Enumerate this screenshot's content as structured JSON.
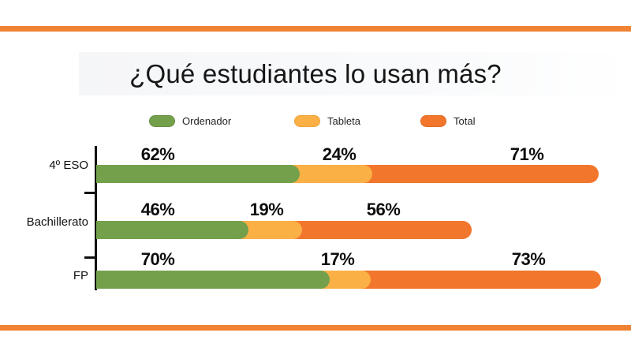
{
  "title": "¿Qué estudiantes lo usan más?",
  "colors": {
    "rule_orange": "#EF8233",
    "bar_green": "#74A04C",
    "bar_amber": "#FBB045",
    "bar_orange": "#F2762B",
    "text": "#161616",
    "title_band": "#F5F6F8"
  },
  "legend": {
    "items": [
      {
        "label": "Ordenador",
        "color": "#74A04C"
      },
      {
        "label": "Tableta",
        "color": "#FBB045"
      },
      {
        "label": "Total",
        "color": "#F2762B"
      }
    ]
  },
  "chart_data": {
    "type": "bar",
    "orientation": "horizontal",
    "title": "¿Qué estudiantes lo usan más?",
    "categories": [
      "4º ESO",
      "Bachillerato",
      "FP"
    ],
    "series": [
      {
        "name": "Ordenador",
        "color": "#74A04C",
        "values": [
          62,
          46,
          70
        ]
      },
      {
        "name": "Tableta",
        "color": "#FBB045",
        "values": [
          24,
          19,
          17
        ]
      },
      {
        "name": "Total",
        "color": "#F2762B",
        "values": [
          71,
          56,
          73
        ]
      }
    ],
    "value_format": "percent",
    "legend_position": "top",
    "grid": false,
    "xlabel": "",
    "ylabel": ""
  },
  "rows": [
    {
      "category": "4º ESO",
      "ordenador": "62%",
      "tableta": "24%",
      "total": "71%"
    },
    {
      "category": "Bachillerato",
      "ordenador": "46%",
      "tableta": "19%",
      "total": "56%"
    },
    {
      "category": "FP",
      "ordenador": "70%",
      "tableta": "17%",
      "total": "73%"
    }
  ]
}
